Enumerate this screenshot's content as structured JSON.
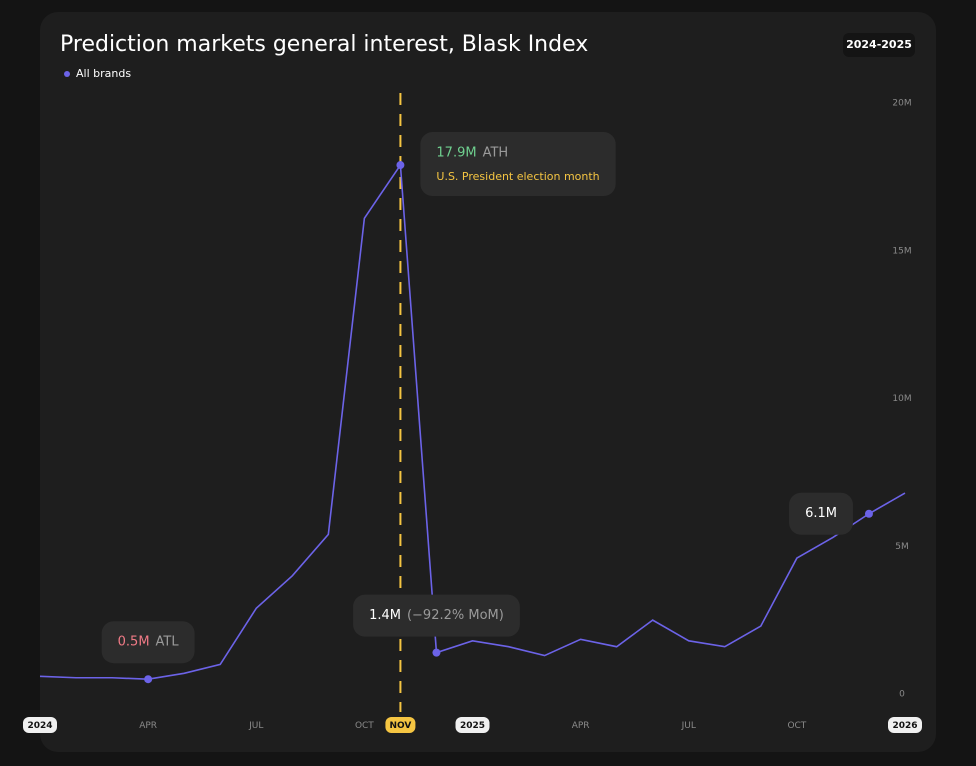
{
  "chart_data": {
    "type": "line",
    "title": "Prediction markets general interest, Blask Index",
    "period": "2024-2025",
    "x": [
      0,
      1,
      2,
      3,
      4,
      5,
      6,
      7,
      8,
      9,
      10,
      11,
      12,
      13,
      14,
      15,
      16,
      17,
      18,
      19,
      20,
      21,
      22,
      23,
      24
    ],
    "series": [
      {
        "name": "All brands",
        "color": "#6c63e8",
        "values": [
          0.6,
          0.55,
          0.55,
          0.5,
          0.7,
          1.0,
          2.9,
          4.0,
          5.4,
          16.1,
          17.9,
          1.4,
          1.8,
          1.6,
          1.3,
          1.85,
          1.6,
          2.5,
          1.8,
          1.6,
          2.3,
          4.6,
          5.3,
          6.1,
          6.8
        ],
        "value_labels": [
          null,
          null,
          null,
          "0.5M",
          null,
          null,
          null,
          null,
          null,
          null,
          "17.9M",
          "1.4M",
          null,
          null,
          null,
          null,
          null,
          null,
          null,
          null,
          null,
          null,
          null,
          "6.1M",
          null
        ],
        "tags": [
          null,
          null,
          null,
          "ATL",
          null,
          null,
          null,
          null,
          null,
          null,
          "ATH",
          "(−92.2% MoM)",
          null,
          null,
          null,
          null,
          null,
          null,
          null,
          null,
          null,
          null,
          null,
          null,
          null
        ],
        "notes": [
          null,
          null,
          null,
          null,
          null,
          null,
          null,
          null,
          null,
          null,
          "U.S. President election month",
          null,
          null,
          null,
          null,
          null,
          null,
          null,
          null,
          null,
          null,
          null,
          null,
          null,
          null
        ]
      }
    ],
    "xlim": [
      0,
      24
    ],
    "xticks": [
      {
        "value": 0,
        "label": "2024",
        "emphasis": "year"
      },
      {
        "value": 3,
        "label": "APR"
      },
      {
        "value": 6,
        "label": "JUL"
      },
      {
        "value": 9,
        "label": "OCT"
      },
      {
        "value": 10,
        "label": "NOV",
        "emphasis": "event"
      },
      {
        "value": 12,
        "label": "2025",
        "emphasis": "year"
      },
      {
        "value": 15,
        "label": "APR"
      },
      {
        "value": 18,
        "label": "JUL"
      },
      {
        "value": 21,
        "label": "OCT"
      },
      {
        "value": 24,
        "label": "2026",
        "emphasis": "year"
      }
    ],
    "ylim": [
      0,
      20
    ],
    "yticks": [
      0,
      {
        "value": 5,
        "label": "5M"
      },
      {
        "value": 10,
        "label": "10M"
      },
      {
        "value": 15,
        "label": "15M"
      },
      {
        "value": 20,
        "label": "20M"
      }
    ],
    "event_line": {
      "x": 10,
      "color": "#f5c542"
    },
    "label_colors": {
      "ATL": "#f07a86",
      "ATH": "#6fd08f",
      "note": "#f5c542"
    }
  }
}
